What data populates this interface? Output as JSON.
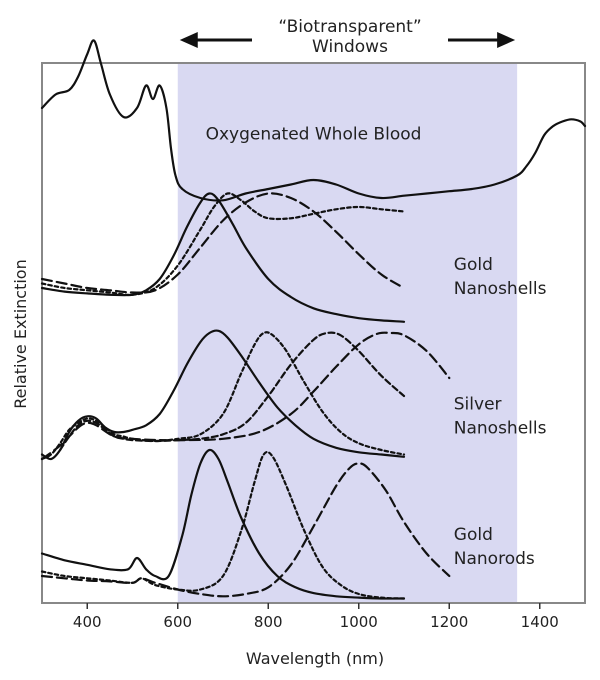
{
  "chart_data": {
    "type": "line",
    "xlabel": "Wavelength (nm)",
    "ylabel": "Relative Extinction",
    "xlim": [
      300,
      1500
    ],
    "xticks": [
      400,
      600,
      800,
      1000,
      1200,
      1400
    ],
    "grid": false,
    "band": {
      "x": [
        600,
        1350
      ],
      "color": "#d9d9f2",
      "label_lines": [
        "“Biotransparent”",
        "Windows"
      ]
    },
    "colors": {
      "line": "#111111",
      "frame": "#888888"
    },
    "annotations": [
      {
        "lines": [
          "Oxygenated Whole Blood"
        ],
        "x": 900,
        "y": 10.3
      },
      {
        "lines": [
          "Gold",
          "Nanoshells"
        ],
        "x": 1210,
        "y": 7.4
      },
      {
        "lines": [
          "Silver",
          "Nanoshells"
        ],
        "x": 1210,
        "y": 4.3
      },
      {
        "lines": [
          "Gold",
          "Nanorods"
        ],
        "x": 1210,
        "y": 1.4
      }
    ],
    "ylim": [
      0,
      12
    ],
    "series": [
      {
        "group": "Oxygenated Whole Blood",
        "dash": "solid",
        "x": [
          300,
          330,
          360,
          380,
          400,
          415,
          430,
          450,
          480,
          510,
          530,
          545,
          560,
          575,
          585,
          595,
          610,
          650,
          700,
          750,
          800,
          850,
          900,
          950,
          1000,
          1050,
          1100,
          1150,
          1200,
          1250,
          1300,
          1350,
          1370,
          1390,
          1410,
          1430,
          1450,
          1470,
          1490,
          1500
        ],
        "y": [
          11.0,
          11.3,
          11.4,
          11.7,
          12.2,
          12.5,
          12.0,
          11.3,
          10.8,
          11.0,
          11.5,
          11.2,
          11.5,
          11.0,
          10.1,
          9.5,
          9.2,
          9.0,
          8.95,
          9.1,
          9.2,
          9.3,
          9.4,
          9.3,
          9.1,
          9.0,
          9.05,
          9.1,
          9.15,
          9.2,
          9.3,
          9.5,
          9.7,
          10.0,
          10.4,
          10.6,
          10.7,
          10.75,
          10.7,
          10.6
        ]
      },
      {
        "group": "Gold Nanoshells",
        "dash": "solid",
        "x": [
          300,
          350,
          400,
          450,
          500,
          530,
          560,
          590,
          620,
          650,
          670,
          690,
          720,
          750,
          800,
          850,
          900,
          950,
          1000,
          1050,
          1100
        ],
        "y": [
          7.0,
          6.92,
          6.88,
          6.85,
          6.85,
          6.95,
          7.2,
          7.7,
          8.35,
          8.9,
          9.1,
          8.95,
          8.45,
          7.9,
          7.2,
          6.8,
          6.55,
          6.42,
          6.33,
          6.28,
          6.25
        ]
      },
      {
        "group": "Gold Nanoshells",
        "dash": "short",
        "x": [
          300,
          350,
          400,
          450,
          500,
          550,
          600,
          650,
          680,
          710,
          740,
          770,
          800,
          850,
          900,
          950,
          1000,
          1050,
          1100
        ],
        "y": [
          7.1,
          7.0,
          6.95,
          6.9,
          6.85,
          7.0,
          7.5,
          8.3,
          8.8,
          9.1,
          8.95,
          8.7,
          8.55,
          8.55,
          8.65,
          8.75,
          8.8,
          8.75,
          8.7
        ]
      },
      {
        "group": "Gold Nanoshells",
        "dash": "long",
        "x": [
          300,
          350,
          400,
          450,
          500,
          550,
          600,
          650,
          700,
          750,
          800,
          850,
          900,
          950,
          1000,
          1050,
          1100
        ],
        "y": [
          7.2,
          7.1,
          7.0,
          6.95,
          6.9,
          6.95,
          7.3,
          7.9,
          8.5,
          8.9,
          9.1,
          9.0,
          8.7,
          8.25,
          7.75,
          7.3,
          7.0
        ]
      },
      {
        "group": "Silver Nanoshells",
        "dash": "solid",
        "x": [
          300,
          320,
          340,
          360,
          380,
          400,
          420,
          440,
          460,
          480,
          500,
          530,
          560,
          590,
          620,
          650,
          670,
          690,
          710,
          740,
          780,
          820,
          860,
          900,
          950,
          1000,
          1050,
          1100
        ],
        "y": [
          3.3,
          3.2,
          3.4,
          3.8,
          4.05,
          4.15,
          4.1,
          3.9,
          3.8,
          3.8,
          3.85,
          3.95,
          4.2,
          4.7,
          5.3,
          5.8,
          6.0,
          6.05,
          5.9,
          5.5,
          4.9,
          4.35,
          3.95,
          3.65,
          3.45,
          3.35,
          3.3,
          3.25
        ]
      },
      {
        "group": "Silver Nanoshells",
        "dash": "short",
        "x": [
          300,
          320,
          340,
          360,
          380,
          400,
          420,
          440,
          460,
          480,
          500,
          550,
          600,
          650,
          700,
          740,
          770,
          790,
          810,
          840,
          880,
          920,
          960,
          1000,
          1050,
          1100
        ],
        "y": [
          3.2,
          3.3,
          3.55,
          3.85,
          4.0,
          4.1,
          4.05,
          3.9,
          3.75,
          3.7,
          3.65,
          3.6,
          3.65,
          3.75,
          4.2,
          5.1,
          5.75,
          6.0,
          5.95,
          5.6,
          4.9,
          4.25,
          3.8,
          3.55,
          3.4,
          3.3
        ]
      },
      {
        "group": "Silver Nanoshells",
        "dash": "medium",
        "x": [
          340,
          360,
          380,
          400,
          420,
          440,
          460,
          480,
          500,
          550,
          600,
          650,
          700,
          750,
          800,
          850,
          900,
          930,
          960,
          1000,
          1050,
          1100
        ],
        "y": [
          3.4,
          3.7,
          3.95,
          4.05,
          4.0,
          3.85,
          3.7,
          3.65,
          3.62,
          3.6,
          3.62,
          3.65,
          3.75,
          4.0,
          4.6,
          5.3,
          5.85,
          6.0,
          5.95,
          5.6,
          5.05,
          4.6
        ]
      },
      {
        "group": "Silver Nanoshells",
        "dash": "long",
        "x": [
          300,
          340,
          380,
          400,
          420,
          460,
          500,
          560,
          620,
          700,
          780,
          850,
          900,
          950,
          1000,
          1040,
          1070,
          1100,
          1150,
          1200
        ],
        "y": [
          3.2,
          3.5,
          3.9,
          4.0,
          3.95,
          3.7,
          3.65,
          3.62,
          3.62,
          3.65,
          3.8,
          4.2,
          4.7,
          5.25,
          5.75,
          5.98,
          6.0,
          5.95,
          5.6,
          5.0
        ]
      },
      {
        "group": "Gold Nanorods",
        "dash": "solid",
        "x": [
          300,
          350,
          400,
          450,
          490,
          510,
          530,
          550,
          580,
          610,
          630,
          650,
          670,
          690,
          710,
          740,
          780,
          820,
          860,
          900,
          950,
          1000,
          1050,
          1100
        ],
        "y": [
          1.1,
          0.95,
          0.85,
          0.75,
          0.75,
          1.0,
          0.75,
          0.6,
          0.6,
          1.5,
          2.4,
          3.1,
          3.4,
          3.2,
          2.7,
          1.9,
          1.1,
          0.6,
          0.35,
          0.22,
          0.15,
          0.12,
          0.1,
          0.1
        ]
      },
      {
        "group": "Gold Nanorods",
        "dash": "short",
        "x": [
          300,
          350,
          400,
          450,
          500,
          520,
          550,
          600,
          650,
          700,
          740,
          770,
          790,
          810,
          840,
          880,
          920,
          960,
          1000,
          1050,
          1100
        ],
        "y": [
          0.7,
          0.6,
          0.55,
          0.5,
          0.45,
          0.55,
          0.4,
          0.3,
          0.3,
          0.6,
          1.6,
          2.7,
          3.3,
          3.25,
          2.6,
          1.6,
          0.8,
          0.4,
          0.2,
          0.12,
          0.1
        ]
      },
      {
        "group": "Gold Nanorods",
        "dash": "long",
        "x": [
          300,
          350,
          400,
          450,
          500,
          520,
          550,
          600,
          650,
          700,
          750,
          800,
          850,
          900,
          950,
          980,
          1000,
          1020,
          1060,
          1100,
          1150,
          1200
        ],
        "y": [
          0.6,
          0.55,
          0.5,
          0.48,
          0.45,
          0.55,
          0.45,
          0.3,
          0.2,
          0.15,
          0.2,
          0.35,
          0.85,
          1.7,
          2.6,
          3.0,
          3.1,
          3.0,
          2.5,
          1.8,
          1.1,
          0.6
        ]
      }
    ]
  }
}
